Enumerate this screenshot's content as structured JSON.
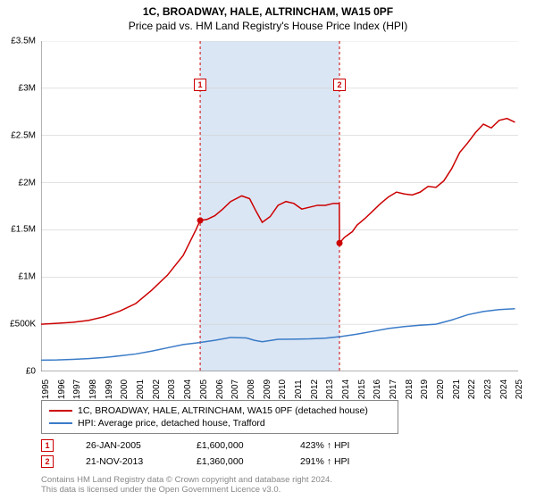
{
  "title": "1C, BROADWAY, HALE, ALTRINCHAM, WA15 0PF",
  "subtitle": "Price paid vs. HM Land Registry's House Price Index (HPI)",
  "chart": {
    "type": "line",
    "background_color": "#ffffff",
    "grid_color": "#d0d0d0",
    "axis_color": "#666666",
    "shaded_band_color": "#dbe6f4",
    "shaded_band_range": [
      2005.07,
      2013.89
    ],
    "xlim": [
      1995,
      2025.2
    ],
    "ylim": [
      0,
      3500000
    ],
    "x_ticks": [
      1995,
      1996,
      1997,
      1998,
      1999,
      2000,
      2001,
      2002,
      2003,
      2004,
      2005,
      2006,
      2007,
      2008,
      2009,
      2010,
      2011,
      2012,
      2013,
      2014,
      2015,
      2016,
      2017,
      2018,
      2019,
      2020,
      2021,
      2022,
      2023,
      2024,
      2025
    ],
    "x_tick_labels": [
      "1995",
      "1996",
      "1997",
      "1998",
      "1999",
      "2000",
      "2001",
      "2002",
      "2003",
      "2004",
      "2005",
      "2006",
      "2007",
      "2008",
      "2009",
      "2010",
      "2011",
      "2012",
      "2013",
      "2014",
      "2015",
      "2016",
      "2017",
      "2018",
      "2019",
      "2020",
      "2021",
      "2022",
      "2023",
      "2024",
      "2025"
    ],
    "y_ticks": [
      0,
      500000,
      1000000,
      1500000,
      2000000,
      2500000,
      3000000,
      3500000
    ],
    "y_tick_labels": [
      "£0",
      "£500K",
      "£1M",
      "£1.5M",
      "£2M",
      "£2.5M",
      "£3M",
      "£3.5M"
    ],
    "title_fontsize": 12,
    "axis_label_fontsize": 10,
    "series": [
      {
        "id": "property_price",
        "label": "1C, BROADWAY, HALE, ALTRINCHAM, WA15 0PF (detached house)",
        "color": "#cc0000",
        "line_width": 1.5,
        "data": [
          [
            1995,
            500000
          ],
          [
            1996,
            510000
          ],
          [
            1997,
            520000
          ],
          [
            1998,
            540000
          ],
          [
            1999,
            580000
          ],
          [
            2000,
            640000
          ],
          [
            2001,
            720000
          ],
          [
            2002,
            860000
          ],
          [
            2003,
            1020000
          ],
          [
            2004,
            1230000
          ],
          [
            2004.8,
            1500000
          ],
          [
            2005.07,
            1600000
          ],
          [
            2005.5,
            1610000
          ],
          [
            2006,
            1650000
          ],
          [
            2006.5,
            1720000
          ],
          [
            2007,
            1800000
          ],
          [
            2007.7,
            1860000
          ],
          [
            2008.2,
            1830000
          ],
          [
            2008.6,
            1700000
          ],
          [
            2009,
            1580000
          ],
          [
            2009.5,
            1640000
          ],
          [
            2010,
            1760000
          ],
          [
            2010.5,
            1800000
          ],
          [
            2011,
            1780000
          ],
          [
            2011.5,
            1720000
          ],
          [
            2012,
            1740000
          ],
          [
            2012.5,
            1760000
          ],
          [
            2013,
            1760000
          ],
          [
            2013.5,
            1780000
          ],
          [
            2013.88,
            1780000
          ],
          [
            2013.89,
            1360000
          ],
          [
            2014.2,
            1420000
          ],
          [
            2014.7,
            1480000
          ],
          [
            2015,
            1550000
          ],
          [
            2015.5,
            1620000
          ],
          [
            2016,
            1700000
          ],
          [
            2016.5,
            1780000
          ],
          [
            2017,
            1850000
          ],
          [
            2017.5,
            1900000
          ],
          [
            2018,
            1880000
          ],
          [
            2018.5,
            1870000
          ],
          [
            2019,
            1900000
          ],
          [
            2019.5,
            1960000
          ],
          [
            2020,
            1950000
          ],
          [
            2020.5,
            2020000
          ],
          [
            2021,
            2150000
          ],
          [
            2021.5,
            2320000
          ],
          [
            2022,
            2420000
          ],
          [
            2022.5,
            2530000
          ],
          [
            2023,
            2620000
          ],
          [
            2023.5,
            2580000
          ],
          [
            2024,
            2660000
          ],
          [
            2024.5,
            2680000
          ],
          [
            2025,
            2640000
          ]
        ]
      },
      {
        "id": "hpi",
        "label": "HPI: Average price, detached house, Trafford",
        "color": "#3a7bc8",
        "line_width": 1.5,
        "data": [
          [
            1995,
            120000
          ],
          [
            1996,
            122000
          ],
          [
            1997,
            128000
          ],
          [
            1998,
            136000
          ],
          [
            1999,
            148000
          ],
          [
            2000,
            165000
          ],
          [
            2001,
            185000
          ],
          [
            2002,
            215000
          ],
          [
            2003,
            250000
          ],
          [
            2004,
            285000
          ],
          [
            2005,
            305000
          ],
          [
            2006,
            330000
          ],
          [
            2007,
            360000
          ],
          [
            2008,
            355000
          ],
          [
            2008.5,
            330000
          ],
          [
            2009,
            315000
          ],
          [
            2010,
            340000
          ],
          [
            2011,
            342000
          ],
          [
            2012,
            345000
          ],
          [
            2013,
            352000
          ],
          [
            2014,
            370000
          ],
          [
            2015,
            395000
          ],
          [
            2016,
            425000
          ],
          [
            2017,
            455000
          ],
          [
            2018,
            475000
          ],
          [
            2019,
            490000
          ],
          [
            2020,
            500000
          ],
          [
            2021,
            545000
          ],
          [
            2022,
            600000
          ],
          [
            2023,
            635000
          ],
          [
            2024,
            655000
          ],
          [
            2025,
            665000
          ]
        ]
      }
    ],
    "markers": [
      {
        "num": "1",
        "x": 2005.07,
        "y": 1600000,
        "date": "26-JAN-2005",
        "price": "£1,600,000",
        "pct": "423% ↑ HPI"
      },
      {
        "num": "2",
        "x": 2013.89,
        "y": 1360000,
        "date": "21-NOV-2013",
        "price": "£1,360,000",
        "pct": "291% ↑ HPI"
      }
    ],
    "marker_vline_color": "#cc0000",
    "marker_vline_dash": "3,3"
  },
  "legend": {
    "series1": "1C, BROADWAY, HALE, ALTRINCHAM, WA15 0PF (detached house)",
    "series2": "HPI: Average price, detached house, Trafford"
  },
  "footer": {
    "line1": "Contains HM Land Registry data © Crown copyright and database right 2024.",
    "line2": "This data is licensed under the Open Government Licence v3.0."
  }
}
